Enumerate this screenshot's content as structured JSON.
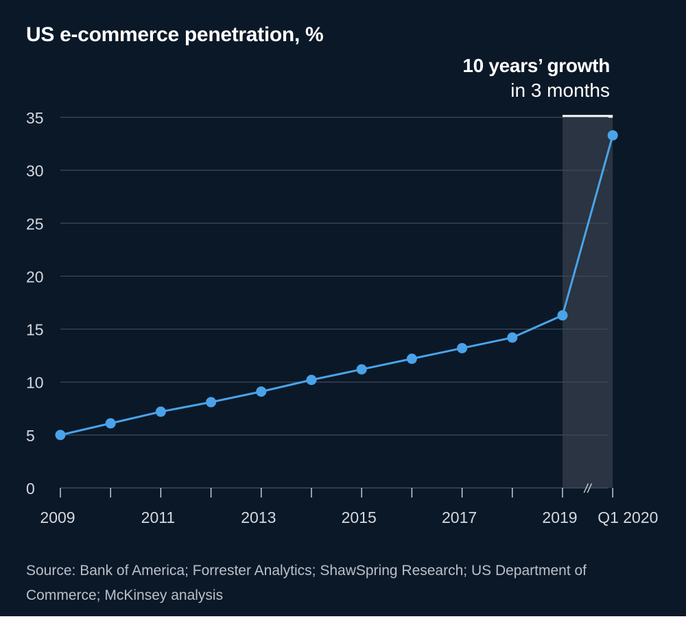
{
  "chart_data": {
    "type": "line",
    "title": "US e-commerce penetration, %",
    "annotation": {
      "bold": "10 years’ growth",
      "light": "in 3 months"
    },
    "x": [
      "2009",
      "2010",
      "2011",
      "2012",
      "2013",
      "2014",
      "2015",
      "2016",
      "2017",
      "2018",
      "2019",
      "Q1 2020"
    ],
    "x_tick_labels": [
      "2009",
      "2011",
      "2013",
      "2015",
      "2017",
      "2019",
      "Q1 2020"
    ],
    "series": [
      {
        "name": "US e-commerce penetration",
        "values": [
          5.0,
          6.1,
          7.2,
          8.1,
          9.1,
          10.2,
          11.2,
          12.2,
          13.2,
          14.2,
          16.3,
          33.3
        ]
      }
    ],
    "yticks": [
      0,
      5,
      10,
      15,
      20,
      25,
      30,
      35
    ],
    "ylim": [
      0,
      35
    ],
    "highlight_range": [
      "2019",
      "Q1 2020"
    ],
    "axis_break": "//",
    "grid": true,
    "xlabel": "",
    "ylabel": "",
    "source": "Source: Bank of America; Forrester Analytics; ShawSpring Research; US Department of Commerce; McKinsey analysis"
  },
  "colors": {
    "background": "#0b1828",
    "line": "#4aa3e8",
    "grid": "#3f4b5a",
    "highlight": "#2a3442",
    "text": "#ffffff",
    "tick_text": "#d4d9df",
    "source_text": "#b9c0c9"
  }
}
